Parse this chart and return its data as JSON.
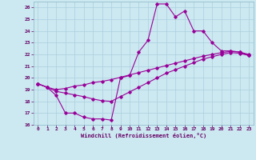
{
  "xlabel": "Windchill (Refroidissement éolien,°C)",
  "background_color": "#cce8f0",
  "grid_color": "#aacfdf",
  "line_color": "#990099",
  "xlim": [
    -0.5,
    23.5
  ],
  "ylim": [
    16,
    26.5
  ],
  "yticks": [
    16,
    17,
    18,
    19,
    20,
    21,
    22,
    23,
    24,
    25,
    26
  ],
  "xticks": [
    0,
    1,
    2,
    3,
    4,
    5,
    6,
    7,
    8,
    9,
    10,
    11,
    12,
    13,
    14,
    15,
    16,
    17,
    18,
    19,
    20,
    21,
    22,
    23
  ],
  "line1_x": [
    0,
    1,
    2,
    3,
    4,
    5,
    6,
    7,
    8,
    9,
    10,
    11,
    12,
    13,
    14,
    15,
    16,
    17,
    18,
    19,
    20,
    21,
    22,
    23
  ],
  "line1_y": [
    19.5,
    19.2,
    18.5,
    17.0,
    17.0,
    16.65,
    16.5,
    16.5,
    16.4,
    20.0,
    20.2,
    22.2,
    23.2,
    26.3,
    26.3,
    25.2,
    25.7,
    24.0,
    24.0,
    23.0,
    22.3,
    22.3,
    22.2,
    22.0
  ],
  "line2_x": [
    0,
    1,
    2,
    3,
    4,
    5,
    6,
    7,
    8,
    9,
    10,
    11,
    12,
    13,
    14,
    15,
    16,
    17,
    18,
    19,
    20,
    21,
    22,
    23
  ],
  "line2_y": [
    19.5,
    19.2,
    19.0,
    19.1,
    19.3,
    19.4,
    19.6,
    19.7,
    19.85,
    20.05,
    20.25,
    20.45,
    20.65,
    20.85,
    21.05,
    21.25,
    21.45,
    21.65,
    21.85,
    22.0,
    22.15,
    22.25,
    22.2,
    21.9
  ],
  "line3_x": [
    0,
    1,
    2,
    3,
    4,
    5,
    6,
    7,
    8,
    9,
    10,
    11,
    12,
    13,
    14,
    15,
    16,
    17,
    18,
    19,
    20,
    21,
    22,
    23
  ],
  "line3_y": [
    19.5,
    19.2,
    18.85,
    18.7,
    18.55,
    18.4,
    18.2,
    18.05,
    18.0,
    18.4,
    18.8,
    19.2,
    19.6,
    20.0,
    20.4,
    20.7,
    21.0,
    21.3,
    21.6,
    21.8,
    22.0,
    22.15,
    22.1,
    21.9
  ]
}
